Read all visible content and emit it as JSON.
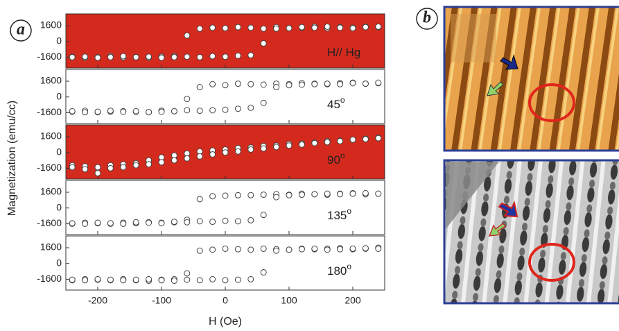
{
  "figure": {
    "panel_a": "a",
    "panel_b": "b",
    "ylabel": "Magnetization (emu/cc)",
    "xlabel": "H (Oe)"
  },
  "chart_data": [
    {
      "type": "scatter",
      "background": "#d42a1e",
      "annotation": {
        "text": "H// Hg"
      },
      "x": [
        -240,
        -220,
        -200,
        -180,
        -160,
        -140,
        -120,
        -100,
        -80,
        -60,
        -40,
        -20,
        0,
        20,
        40,
        60,
        80,
        100,
        120,
        140,
        160,
        180,
        200,
        220,
        240
      ],
      "xlim": [
        -250,
        250
      ],
      "ylim": [
        -2700,
        2800
      ],
      "yticks": [
        -1600,
        0,
        1600
      ],
      "series": [
        {
          "color": "#ffffff",
          "values": [
            -1550,
            -1650,
            -1600,
            -1500,
            -1620,
            -1580,
            -1650,
            -1550,
            -1500,
            600,
            1300,
            1400,
            1350,
            1450,
            1400,
            1300,
            1450,
            1350,
            1400,
            1500,
            1350,
            1450,
            1400,
            1500,
            1450
          ]
        },
        {
          "color": "#ffffff",
          "values": [
            -1600,
            -1550,
            -1650,
            -1600,
            -1500,
            -1600,
            -1550,
            -1650,
            -1600,
            -1550,
            -1600,
            -1500,
            -1550,
            -1450,
            -1400,
            -200,
            1300,
            1350,
            1450,
            1400,
            1500,
            1400,
            1350,
            1450,
            1500
          ]
        }
      ]
    },
    {
      "type": "scatter",
      "background": "#ffffff",
      "annotation": {
        "text": "45",
        "sup": "o"
      },
      "x": [
        -240,
        -220,
        -200,
        -180,
        -160,
        -140,
        -120,
        -100,
        -80,
        -60,
        -40,
        -20,
        0,
        20,
        40,
        60,
        80,
        100,
        120,
        140,
        160,
        180,
        200,
        220,
        240
      ],
      "xlim": [
        -250,
        250
      ],
      "ylim": [
        -2700,
        2800
      ],
      "yticks": [
        -1600,
        0,
        1600
      ],
      "series": [
        {
          "color": "#ffffff",
          "values": [
            -1500,
            -1400,
            -1550,
            -1500,
            -1450,
            -1500,
            -1550,
            -1400,
            -1450,
            -200,
            1000,
            1300,
            1200,
            1350,
            1300,
            1250,
            1350,
            1300,
            1400,
            1350,
            1300,
            1400,
            1450,
            1350,
            1400
          ]
        },
        {
          "color": "#ffffff",
          "values": [
            -1450,
            -1550,
            -1500,
            -1400,
            -1500,
            -1450,
            -1550,
            -1500,
            -1450,
            -1350,
            -1400,
            -1350,
            -1300,
            -1200,
            -1100,
            -600,
            1000,
            1200,
            1250,
            1300,
            1350,
            1300,
            1400,
            1350,
            1450
          ]
        }
      ]
    },
    {
      "type": "scatter",
      "background": "#d42a1e",
      "annotation": {
        "text": "90",
        "sup": "o"
      },
      "x": [
        -240,
        -220,
        -200,
        -180,
        -160,
        -140,
        -120,
        -100,
        -80,
        -60,
        -40,
        -20,
        0,
        20,
        40,
        60,
        80,
        100,
        120,
        140,
        160,
        180,
        200,
        220,
        240
      ],
      "xlim": [
        -250,
        250
      ],
      "ylim": [
        -2700,
        2800
      ],
      "yticks": [
        -1600,
        0,
        1600
      ],
      "series": [
        {
          "color": "#ffffff",
          "values": [
            -1300,
            -1400,
            -1500,
            -1300,
            -1200,
            -1100,
            -800,
            -500,
            -300,
            -100,
            100,
            200,
            300,
            450,
            500,
            650,
            700,
            850,
            900,
            1000,
            1150,
            1200,
            1300,
            1400,
            1500
          ]
        },
        {
          "color": "#ffffff",
          "values": [
            -1500,
            -1700,
            -2100,
            -1600,
            -1500,
            -1300,
            -1200,
            -1000,
            -800,
            -600,
            -400,
            -200,
            0,
            100,
            300,
            400,
            550,
            700,
            800,
            950,
            1050,
            1150,
            1300,
            1350,
            1450
          ]
        }
      ]
    },
    {
      "type": "scatter",
      "background": "#ffffff",
      "annotation": {
        "text": "135",
        "sup": "o"
      },
      "x": [
        -240,
        -220,
        -200,
        -180,
        -160,
        -140,
        -120,
        -100,
        -80,
        -60,
        -40,
        -20,
        0,
        20,
        40,
        60,
        80,
        100,
        120,
        140,
        160,
        180,
        200,
        220,
        240
      ],
      "xlim": [
        -250,
        250
      ],
      "ylim": [
        -2700,
        2800
      ],
      "yticks": [
        -1600,
        0,
        1600
      ],
      "series": [
        {
          "color": "#ffffff",
          "values": [
            -1600,
            -1500,
            -1550,
            -1600,
            -1500,
            -1550,
            -1450,
            -1500,
            -1450,
            -1200,
            900,
            1200,
            1250,
            1300,
            1300,
            1350,
            1400,
            1350,
            1450,
            1400,
            1350,
            1450,
            1500,
            1400,
            1450
          ]
        },
        {
          "color": "#ffffff",
          "values": [
            -1550,
            -1600,
            -1500,
            -1550,
            -1600,
            -1450,
            -1500,
            -1550,
            -1400,
            -1450,
            -1350,
            -1400,
            -1300,
            -1350,
            -1250,
            -700,
            1100,
            1300,
            1350,
            1400,
            1450,
            1400,
            1450,
            1500,
            1450
          ]
        }
      ]
    },
    {
      "type": "scatter",
      "background": "#ffffff",
      "annotation": {
        "text": "180",
        "sup": "o"
      },
      "x": [
        -240,
        -220,
        -200,
        -180,
        -160,
        -140,
        -120,
        -100,
        -80,
        -60,
        -40,
        -20,
        0,
        20,
        40,
        60,
        80,
        100,
        120,
        140,
        160,
        180,
        200,
        220,
        240
      ],
      "xlim": [
        -250,
        250
      ],
      "ylim": [
        -2700,
        2800
      ],
      "yticks": [
        -1600,
        0,
        1600
      ],
      "xticks": [
        -200,
        -100,
        0,
        100,
        200
      ],
      "series": [
        {
          "color": "#ffffff",
          "values": [
            -1700,
            -1600,
            -1650,
            -1700,
            -1600,
            -1700,
            -1750,
            -1650,
            -1600,
            -1000,
            1300,
            1400,
            1500,
            1450,
            1400,
            1500,
            1450,
            1400,
            1500,
            1450,
            1500,
            1550,
            1450,
            1500,
            1600
          ]
        },
        {
          "color": "#ffffff",
          "values": [
            -1650,
            -1700,
            -1600,
            -1650,
            -1700,
            -1650,
            -1600,
            -1700,
            -1750,
            -1650,
            -1700,
            -1600,
            -1700,
            -1650,
            -1600,
            -900,
            1300,
            1400,
            1450,
            1500,
            1400,
            1450,
            1500,
            1550,
            1500
          ]
        }
      ]
    }
  ]
}
